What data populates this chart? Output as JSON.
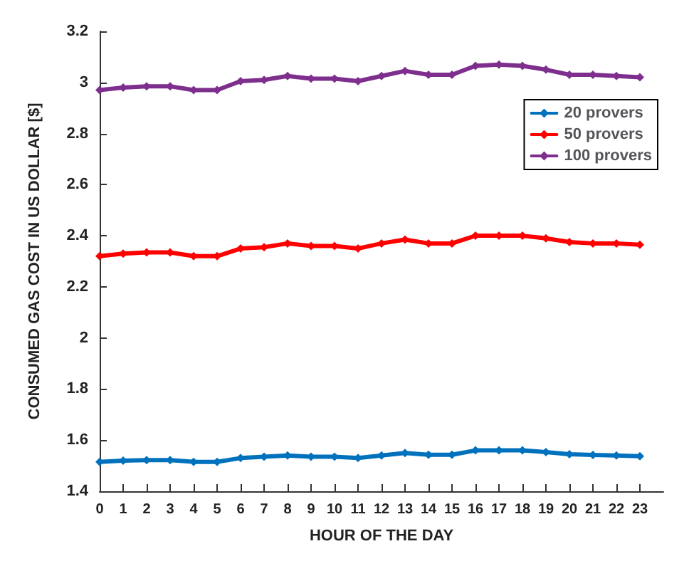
{
  "chart_data": {
    "type": "line",
    "xlabel": "HOUR OF THE DAY",
    "ylabel": "CONSUMED GAS COST IN US DOLLAR [$]",
    "x": [
      0,
      1,
      2,
      3,
      4,
      5,
      6,
      7,
      8,
      9,
      10,
      11,
      12,
      13,
      14,
      15,
      16,
      17,
      18,
      19,
      20,
      21,
      22,
      23
    ],
    "series": [
      {
        "name": "20 provers",
        "color": "#0072bd",
        "values": [
          1.515,
          1.52,
          1.522,
          1.522,
          1.515,
          1.515,
          1.53,
          1.535,
          1.54,
          1.535,
          1.535,
          1.53,
          1.54,
          1.55,
          1.543,
          1.543,
          1.56,
          1.56,
          1.56,
          1.553,
          1.545,
          1.542,
          1.54,
          1.537
        ]
      },
      {
        "name": "50 provers",
        "color": "#ff0000",
        "values": [
          2.32,
          2.33,
          2.335,
          2.335,
          2.32,
          2.32,
          2.35,
          2.355,
          2.37,
          2.36,
          2.36,
          2.35,
          2.37,
          2.385,
          2.37,
          2.37,
          2.4,
          2.4,
          2.4,
          2.39,
          2.375,
          2.37,
          2.37,
          2.365
        ]
      },
      {
        "name": "100 provers",
        "color": "#7e2f8e",
        "values": [
          2.97,
          2.98,
          2.985,
          2.985,
          2.97,
          2.97,
          3.005,
          3.01,
          3.025,
          3.015,
          3.015,
          3.005,
          3.025,
          3.045,
          3.03,
          3.03,
          3.065,
          3.07,
          3.065,
          3.05,
          3.03,
          3.03,
          3.025,
          3.02
        ]
      }
    ],
    "xlim": [
      0,
      24
    ],
    "xticks": [
      0,
      1,
      2,
      3,
      4,
      5,
      6,
      7,
      8,
      9,
      10,
      11,
      12,
      13,
      14,
      15,
      16,
      17,
      18,
      19,
      20,
      21,
      22,
      23
    ],
    "ylim": [
      1.4,
      3.2
    ],
    "yticks": [
      1.4,
      1.6,
      1.8,
      2,
      2.2,
      2.4,
      2.6,
      2.8,
      3,
      3.2
    ],
    "grid": false,
    "legend": "top right",
    "marker": "diamond",
    "line_style": "solid"
  }
}
